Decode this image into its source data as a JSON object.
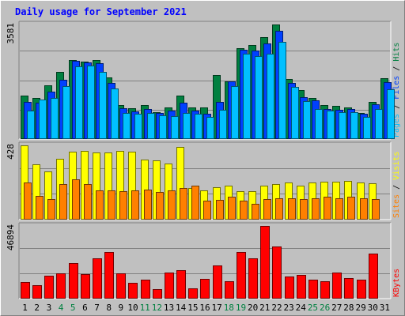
{
  "title": "Daily usage for September 2021",
  "colors": {
    "hits": "#008040",
    "files": "#0040ff",
    "pages": "#00c0ff",
    "visits": "#ffff00",
    "sites": "#ff8000",
    "kbytes": "#ff0000",
    "weekend_label": "#008040"
  },
  "chart_data": [
    {
      "type": "bar",
      "title": "Daily usage for September 2021",
      "categories": [
        "1",
        "2",
        "3",
        "4",
        "5",
        "6",
        "7",
        "8",
        "9",
        "10",
        "11",
        "12",
        "13",
        "14",
        "15",
        "16",
        "17",
        "18",
        "19",
        "20",
        "21",
        "22",
        "23",
        "24",
        "25",
        "26",
        "27",
        "28",
        "29",
        "30",
        "31"
      ],
      "weekend_days": [
        "4",
        "5",
        "11",
        "12",
        "18",
        "19",
        "25",
        "26"
      ],
      "ymax_label": "3581",
      "ylim": [
        0,
        3581
      ],
      "ylabel_parts": [
        "Pages",
        "Files",
        "Hits"
      ],
      "series": [
        {
          "name": "Hits",
          "values": [
            1370,
            1290,
            1680,
            2100,
            2460,
            2420,
            2460,
            1930,
            1070,
            975,
            1070,
            850,
            1000,
            1370,
            1000,
            1000,
            1990,
            1800,
            2840,
            2940,
            3190,
            3581,
            1880,
            1540,
            1280,
            1070,
            1030,
            1000,
            810,
            1170,
            1890
          ]
        },
        {
          "name": "Files",
          "values": [
            1170,
            1140,
            1480,
            1860,
            2450,
            2390,
            2360,
            1760,
            960,
            860,
            950,
            810,
            880,
            1130,
            890,
            800,
            1170,
            1810,
            2780,
            2770,
            3000,
            3380,
            1760,
            1310,
            1220,
            950,
            920,
            930,
            780,
            1080,
            1770
          ]
        },
        {
          "name": "Pages",
          "values": [
            880,
            1230,
            1290,
            1660,
            2280,
            2300,
            2090,
            1570,
            820,
            790,
            820,
            740,
            720,
            820,
            790,
            690,
            920,
            1660,
            2670,
            2600,
            2670,
            3040,
            1620,
            1180,
            940,
            880,
            830,
            830,
            690,
            930,
            1550
          ]
        }
      ]
    },
    {
      "type": "bar",
      "categories": [
        "1",
        "2",
        "3",
        "4",
        "5",
        "6",
        "7",
        "8",
        "9",
        "10",
        "11",
        "12",
        "13",
        "14",
        "15",
        "16",
        "17",
        "18",
        "19",
        "20",
        "21",
        "22",
        "23",
        "24",
        "25",
        "26",
        "27",
        "28",
        "29",
        "30",
        "31"
      ],
      "ymax_label": "428",
      "ylim": [
        0,
        428
      ],
      "ylabel_parts": [
        "Sites",
        "Visits"
      ],
      "series": [
        {
          "name": "Visits",
          "values": [
            428,
            320,
            280,
            350,
            390,
            395,
            385,
            385,
            395,
            390,
            345,
            340,
            325,
            420,
            180,
            170,
            185,
            195,
            165,
            165,
            195,
            205,
            215,
            195,
            215,
            220,
            220,
            225,
            215,
            210,
            0
          ]
        },
        {
          "name": "Sites",
          "values": [
            215,
            135,
            120,
            205,
            230,
            205,
            170,
            170,
            165,
            170,
            175,
            160,
            170,
            180,
            195,
            110,
            115,
            130,
            110,
            90,
            120,
            125,
            125,
            120,
            125,
            130,
            125,
            130,
            125,
            120,
            0
          ]
        }
      ]
    },
    {
      "type": "bar",
      "categories": [
        "1",
        "2",
        "3",
        "4",
        "5",
        "6",
        "7",
        "8",
        "9",
        "10",
        "11",
        "12",
        "13",
        "14",
        "15",
        "16",
        "17",
        "18",
        "19",
        "20",
        "21",
        "22",
        "23",
        "24",
        "25",
        "26",
        "27",
        "28",
        "29",
        "30",
        "31"
      ],
      "ymax_label": "46894",
      "ylim": [
        0,
        46894
      ],
      "ylabel_parts": [
        "KBytes"
      ],
      "series": [
        {
          "name": "KBytes",
          "values": [
            10500,
            8500,
            15000,
            16500,
            23000,
            16000,
            26000,
            30000,
            16500,
            10000,
            12000,
            6000,
            17000,
            18500,
            6500,
            12500,
            21500,
            11000,
            30000,
            26000,
            46894,
            33500,
            14500,
            15500,
            12000,
            11000,
            17000,
            13000,
            12000,
            29000,
            0
          ]
        }
      ]
    }
  ]
}
